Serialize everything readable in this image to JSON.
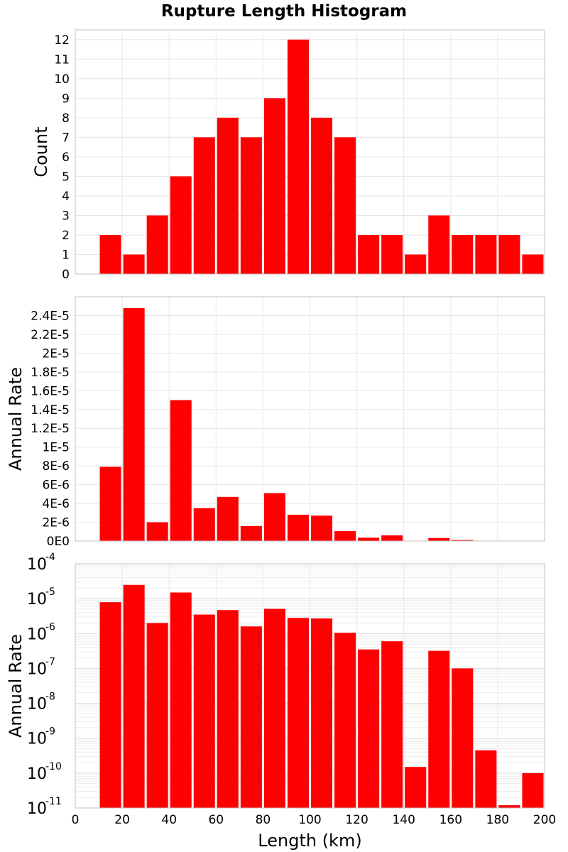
{
  "title": "Rupture Length Histogram",
  "colors": {
    "bar": "#ff0000",
    "grid": "#e6e6e6",
    "frame": "#c0c0c0"
  },
  "chart_data": [
    {
      "type": "bar",
      "ylabel": "Count",
      "xlim": [
        0,
        200
      ],
      "ylim": [
        0,
        12.5
      ],
      "grid": true,
      "yticks": [
        "0",
        "1",
        "2",
        "3",
        "4",
        "5",
        "6",
        "7",
        "8",
        "9",
        "10",
        "11",
        "12"
      ],
      "bins": [
        10,
        20,
        30,
        40,
        50,
        60,
        70,
        80,
        90,
        100,
        110,
        120,
        130,
        140,
        150,
        160,
        170,
        180,
        190
      ],
      "bin_width": 10,
      "values": [
        2,
        1,
        3,
        5,
        7,
        8,
        7,
        9,
        12,
        8,
        7,
        2,
        2,
        1,
        3,
        2,
        2,
        2,
        1
      ]
    },
    {
      "type": "bar",
      "ylabel": "Annual Rate",
      "xlim": [
        0,
        200
      ],
      "ylim": [
        0,
        2.6e-05
      ],
      "grid": true,
      "yticks": [
        "0E0",
        "2E-6",
        "4E-6",
        "6E-6",
        "8E-6",
        "1E-5",
        "1.2E-5",
        "1.4E-5",
        "1.6E-5",
        "1.8E-5",
        "2E-5",
        "2.2E-5",
        "2.4E-5"
      ],
      "bins": [
        10,
        20,
        30,
        40,
        50,
        60,
        70,
        80,
        90,
        100,
        110,
        120,
        130,
        140,
        150,
        160,
        170,
        180,
        190
      ],
      "bin_width": 10,
      "values": [
        7.9e-06,
        2.48e-05,
        2e-06,
        1.5e-05,
        3.5e-06,
        4.7e-06,
        1.6e-06,
        5.1e-06,
        2.8e-06,
        2.7e-06,
        1.05e-06,
        3.5e-07,
        6e-07,
        1.5e-10,
        3.2e-07,
        1e-07,
        4.5e-10,
        1.2e-11,
        1e-10
      ]
    },
    {
      "type": "bar",
      "ylabel": "Annual Rate",
      "xlabel": "Length (km)",
      "xlim": [
        0,
        200
      ],
      "ylim": [
        1e-11,
        0.0001
      ],
      "yscale": "log",
      "grid": true,
      "yticks": [
        "-4",
        "-5",
        "-6",
        "-7",
        "-8",
        "-9",
        "-10",
        "-11"
      ],
      "ytick_base": "10",
      "xticks": [
        "0",
        "20",
        "40",
        "60",
        "80",
        "100",
        "120",
        "140",
        "160",
        "180",
        "200"
      ],
      "bins": [
        10,
        20,
        30,
        40,
        50,
        60,
        70,
        80,
        90,
        100,
        110,
        120,
        130,
        140,
        150,
        160,
        170,
        180,
        190
      ],
      "bin_width": 10,
      "values": [
        7.9e-06,
        2.48e-05,
        2e-06,
        1.5e-05,
        3.5e-06,
        4.7e-06,
        1.6e-06,
        5.1e-06,
        2.8e-06,
        2.7e-06,
        1.05e-06,
        3.5e-07,
        6e-07,
        1.5e-10,
        3.2e-07,
        1e-07,
        4.5e-10,
        1.2e-11,
        1e-10
      ]
    }
  ]
}
